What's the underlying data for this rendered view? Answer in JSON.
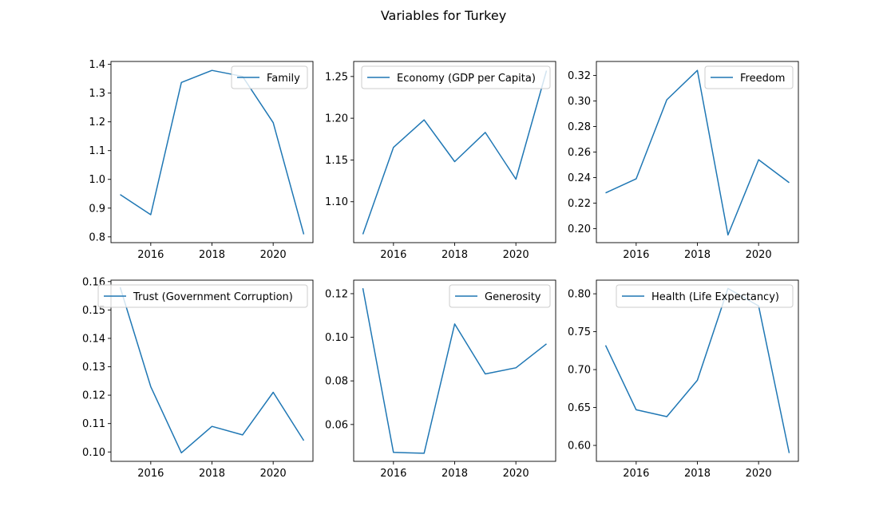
{
  "title": "Variables for Turkey",
  "series_color": "#1f77b4",
  "chart_data": [
    {
      "type": "line",
      "x": [
        2015,
        2016,
        2017,
        2018,
        2019,
        2020,
        2021
      ],
      "series": [
        {
          "name": "Family",
          "values": [
            0.947,
            0.877,
            1.337,
            1.379,
            1.358,
            1.197,
            0.809
          ]
        }
      ],
      "xlim": [
        2014.7,
        2021.3
      ],
      "xticks": [
        2016,
        2018,
        2020
      ],
      "ylim": [
        0.78,
        1.41
      ],
      "yticks": [
        "0.8",
        "0.9",
        "1.0",
        "1.1",
        "1.2",
        "1.3",
        "1.4"
      ],
      "legend": "upper right"
    },
    {
      "type": "line",
      "x": [
        2015,
        2016,
        2017,
        2018,
        2019,
        2020,
        2021
      ],
      "series": [
        {
          "name": "Economy (GDP per Capita)",
          "values": [
            1.061,
            1.165,
            1.198,
            1.148,
            1.183,
            1.127,
            1.257
          ]
        }
      ],
      "xlim": [
        2014.7,
        2021.3
      ],
      "xticks": [
        2016,
        2018,
        2020
      ],
      "ylim": [
        1.051,
        1.268
      ],
      "yticks": [
        "1.10",
        "1.15",
        "1.20",
        "1.25"
      ],
      "legend": "upper left"
    },
    {
      "type": "line",
      "x": [
        2015,
        2016,
        2017,
        2018,
        2019,
        2020,
        2021
      ],
      "series": [
        {
          "name": "Freedom",
          "values": [
            0.228,
            0.239,
            0.301,
            0.324,
            0.195,
            0.254,
            0.236
          ]
        }
      ],
      "xlim": [
        2014.7,
        2021.3
      ],
      "xticks": [
        2016,
        2018,
        2020
      ],
      "ylim": [
        0.189,
        0.331
      ],
      "yticks": [
        "0.20",
        "0.22",
        "0.24",
        "0.26",
        "0.28",
        "0.30",
        "0.32"
      ],
      "legend": "upper right"
    },
    {
      "type": "line",
      "x": [
        2015,
        2016,
        2017,
        2018,
        2019,
        2020,
        2021
      ],
      "series": [
        {
          "name": "Trust (Government Corruption)",
          "values": [
            0.158,
            0.123,
            0.0997,
            0.109,
            0.106,
            0.121,
            0.104
          ]
        }
      ],
      "xlim": [
        2014.7,
        2021.3
      ],
      "xticks": [
        2016,
        2018,
        2020
      ],
      "ylim": [
        0.0967,
        0.1605
      ],
      "yticks": [
        "0.10",
        "0.11",
        "0.12",
        "0.13",
        "0.14",
        "0.15",
        "0.16"
      ],
      "legend": "upper right"
    },
    {
      "type": "line",
      "x": [
        2015,
        2016,
        2017,
        2018,
        2019,
        2020,
        2021
      ],
      "series": [
        {
          "name": "Generosity",
          "values": [
            0.1225,
            0.0472,
            0.0468,
            0.1061,
            0.0832,
            0.086,
            0.097
          ]
        }
      ],
      "xlim": [
        2014.7,
        2021.3
      ],
      "xticks": [
        2016,
        2018,
        2020
      ],
      "ylim": [
        0.0431,
        0.1262
      ],
      "yticks": [
        "0.06",
        "0.08",
        "0.10",
        "0.12"
      ],
      "legend": "upper right"
    },
    {
      "type": "line",
      "x": [
        2015,
        2016,
        2017,
        2018,
        2019,
        2020,
        2021
      ],
      "series": [
        {
          "name": "Health (Life Expectancy)",
          "values": [
            0.732,
            0.647,
            0.638,
            0.686,
            0.807,
            0.784,
            0.59
          ]
        }
      ],
      "xlim": [
        2014.7,
        2021.3
      ],
      "xticks": [
        2016,
        2018,
        2020
      ],
      "ylim": [
        0.579,
        0.818
      ],
      "yticks": [
        "0.60",
        "0.65",
        "0.70",
        "0.75",
        "0.80"
      ],
      "legend": "upper right"
    }
  ]
}
